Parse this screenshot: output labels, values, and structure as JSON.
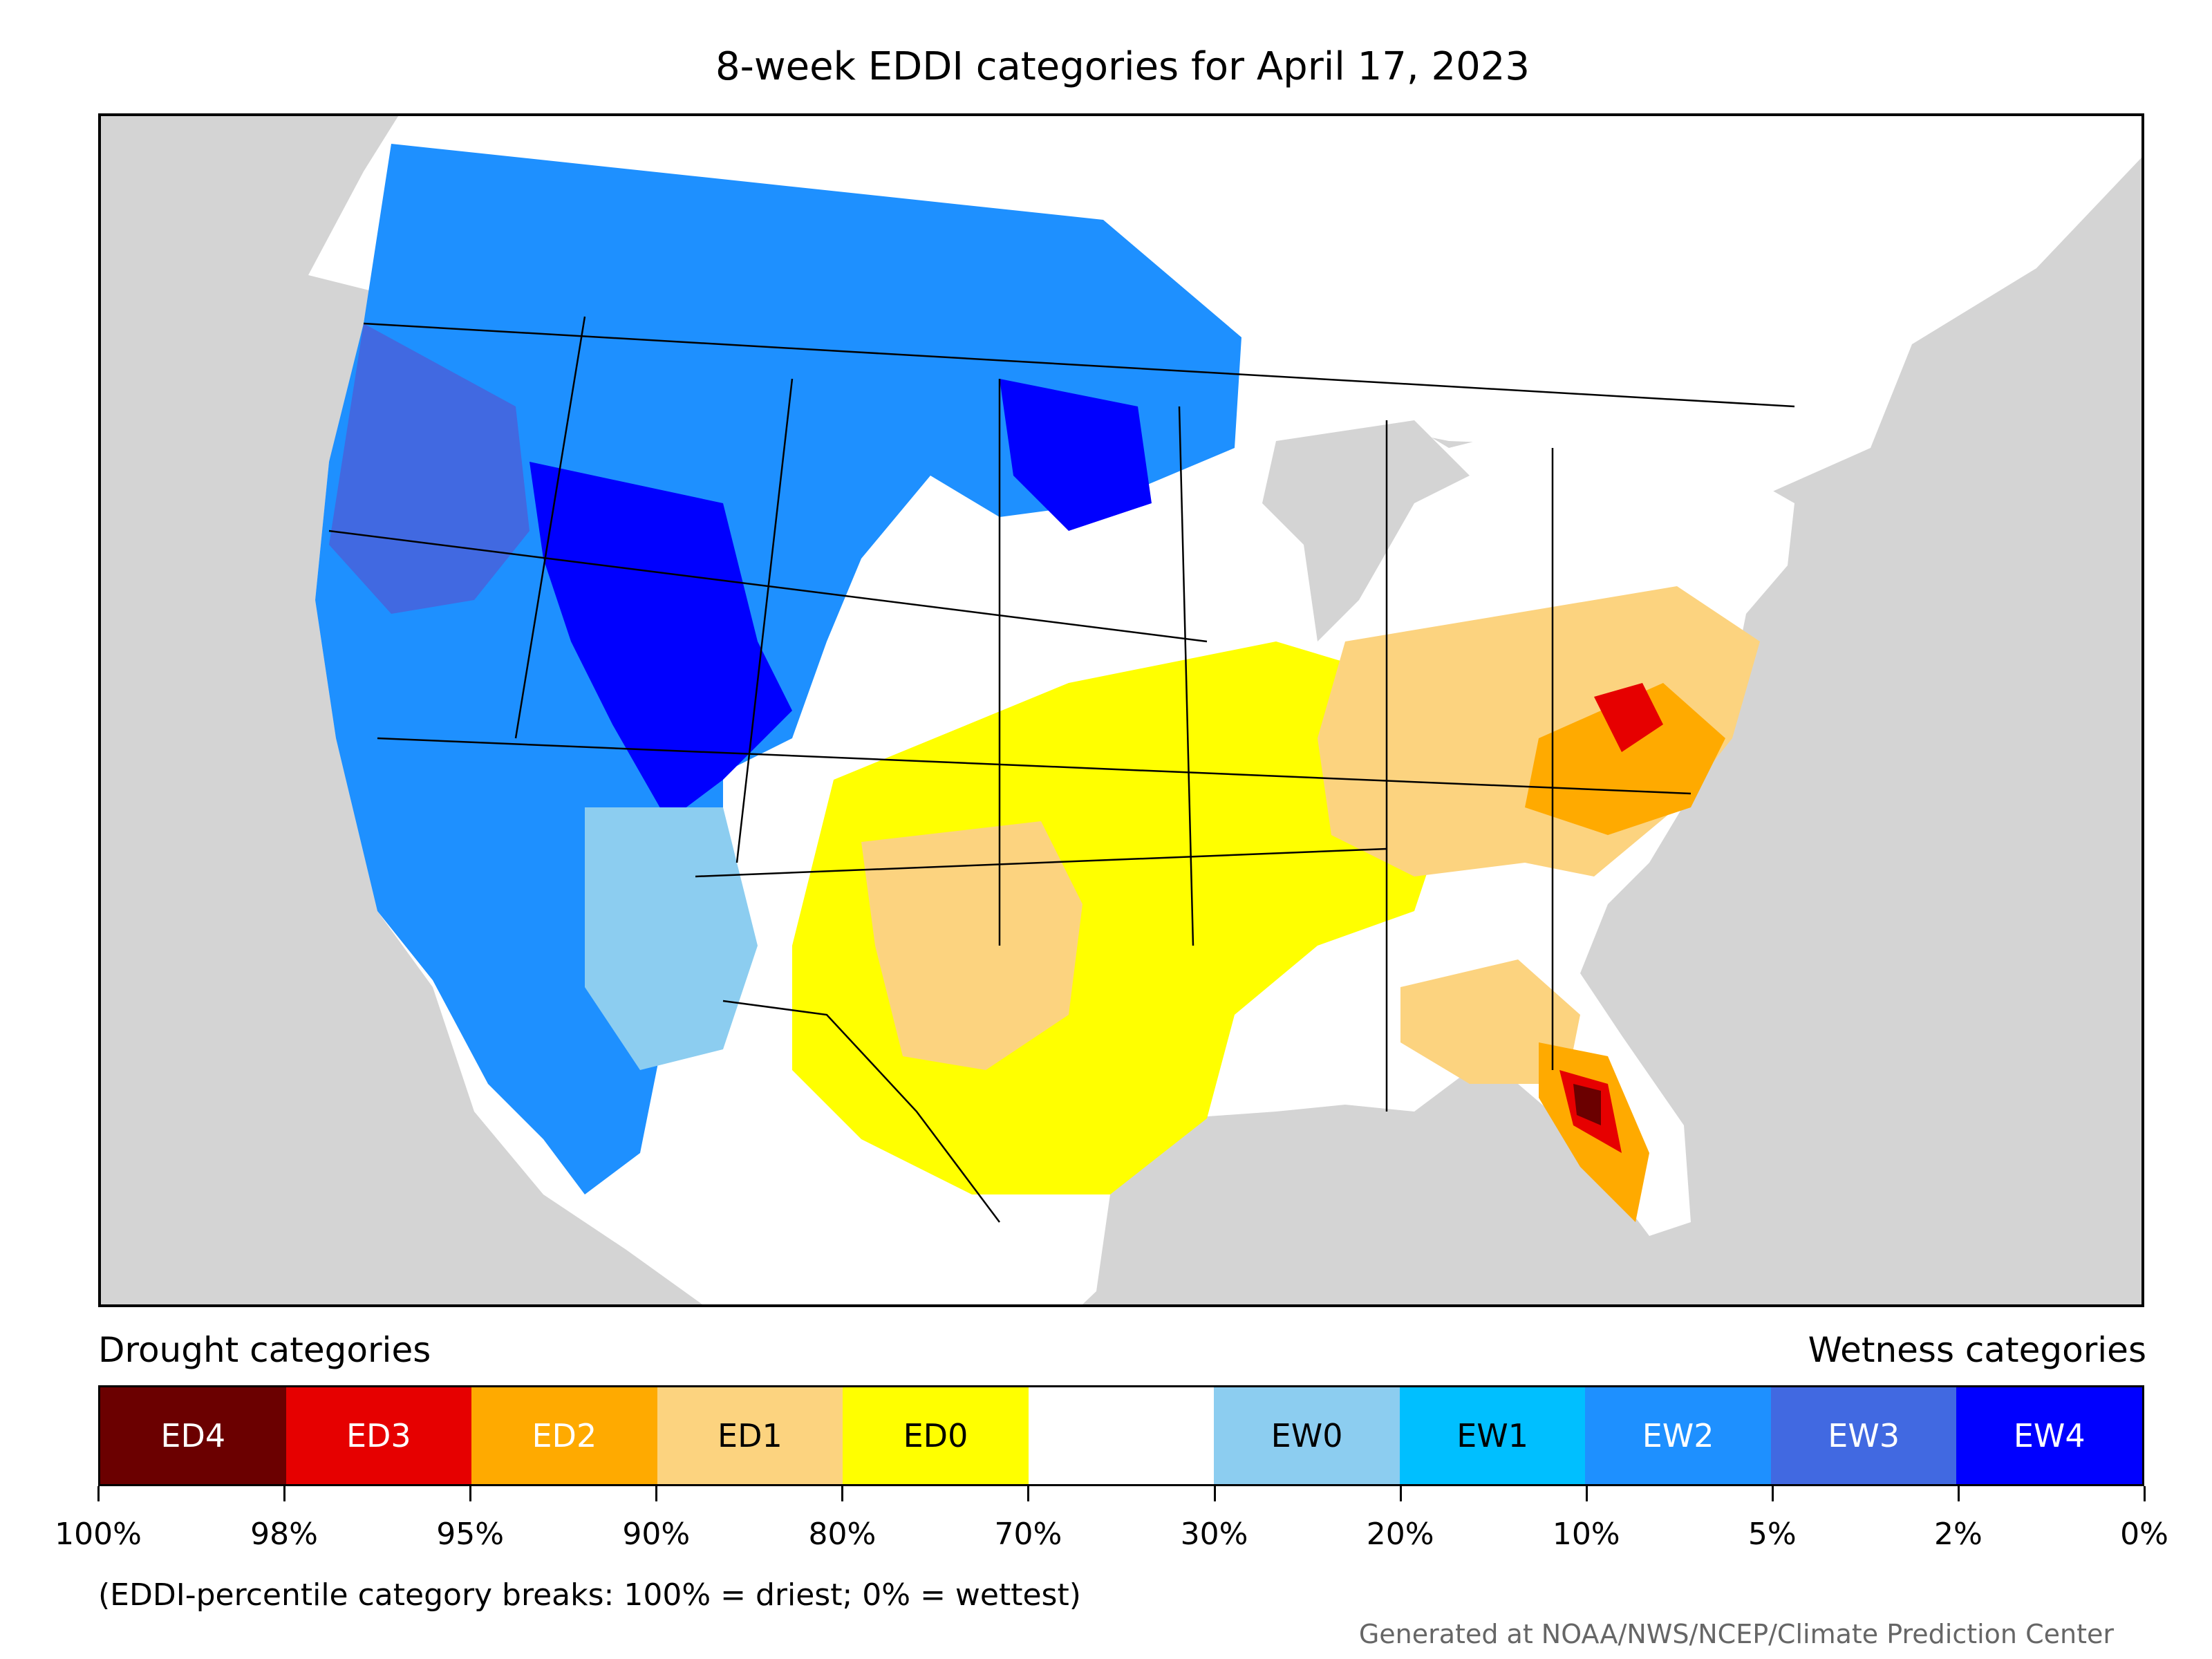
{
  "title": "8-week EDDI categories for April 17, 2023",
  "map": {
    "background_color": "#d4d4d4",
    "land_color": "#ffffff",
    "boundary_color": "#000000"
  },
  "legend": {
    "drought_title": "Drought categories",
    "wetness_title": "Wetness categories",
    "categories": [
      {
        "label": "ED4",
        "color": "#6b0000",
        "text_color": "#ffffff"
      },
      {
        "label": "ED3",
        "color": "#e60000",
        "text_color": "#ffffff"
      },
      {
        "label": "ED2",
        "color": "#ffaa00",
        "text_color": "#ffffff"
      },
      {
        "label": "ED1",
        "color": "#fcd37f",
        "text_color": "#000000"
      },
      {
        "label": "ED0",
        "color": "#ffff00",
        "text_color": "#000000"
      },
      {
        "label": "",
        "color": "#ffffff",
        "text_color": "#000000"
      },
      {
        "label": "EW0",
        "color": "#8ccdf0",
        "text_color": "#000000"
      },
      {
        "label": "EW1",
        "color": "#00bfff",
        "text_color": "#000000"
      },
      {
        "label": "EW2",
        "color": "#1e90ff",
        "text_color": "#ffffff"
      },
      {
        "label": "EW3",
        "color": "#4169e1",
        "text_color": "#ffffff"
      },
      {
        "label": "EW4",
        "color": "#0000ff",
        "text_color": "#ffffff"
      }
    ],
    "ticks": [
      "100%",
      "98%",
      "95%",
      "90%",
      "80%",
      "70%",
      "30%",
      "20%",
      "10%",
      "5%",
      "2%",
      "0%"
    ],
    "note": "(EDDI-percentile category breaks: 100% = driest; 0% = wettest)"
  },
  "credit": "Generated at NOAA/NWS/NCEP/Climate Prediction Center"
}
